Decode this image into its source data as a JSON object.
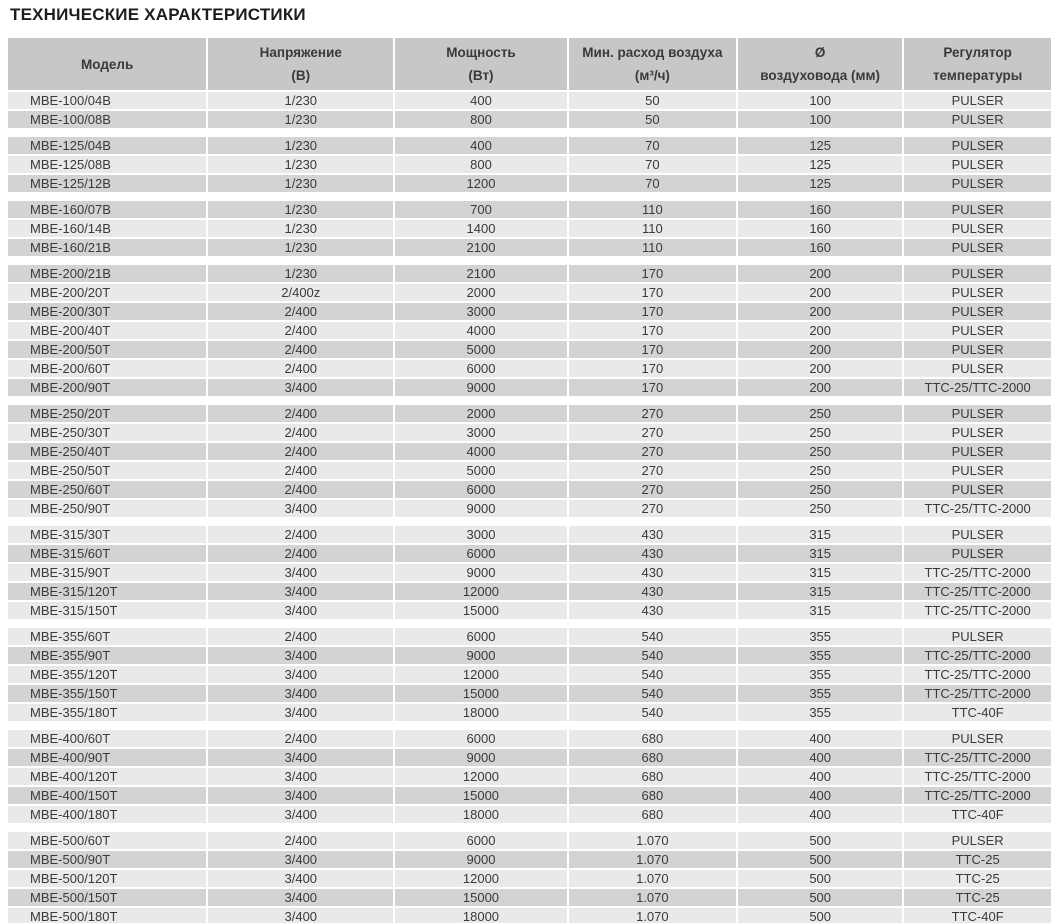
{
  "title": "ТЕХНИЧЕСКИЕ ХАРАКТЕРИСТИКИ",
  "colors": {
    "header_bg": "#c7c7c7",
    "row_light": "#e9e9e9",
    "row_dark": "#d3d3d3",
    "text": "#3a3a3a",
    "title_text": "#1d1d1b"
  },
  "table": {
    "columns": [
      {
        "label": "Модель",
        "sub": ""
      },
      {
        "label": "Напряжение",
        "sub": "(В)"
      },
      {
        "label": "Мощность",
        "sub": "(Вт)"
      },
      {
        "label": "Мин. расход воздуха",
        "sub": "(м³/ч)"
      },
      {
        "label": "Ø",
        "sub": "воздуховода (мм)"
      },
      {
        "label": "Регулятор",
        "sub": "температуры"
      }
    ],
    "groups": [
      {
        "name": "MBE-100",
        "rows": [
          [
            "MBE-100/04B",
            "1/230",
            "400",
            "50",
            "100",
            "PULSER"
          ],
          [
            "MBE-100/08B",
            "1/230",
            "800",
            "50",
            "100",
            "PULSER"
          ]
        ]
      },
      {
        "name": "MBE-125",
        "rows": [
          [
            "MBE-125/04B",
            "1/230",
            "400",
            "70",
            "125",
            "PULSER"
          ],
          [
            "MBE-125/08B",
            "1/230",
            "800",
            "70",
            "125",
            "PULSER"
          ],
          [
            "MBE-125/12B",
            "1/230",
            "1200",
            "70",
            "125",
            "PULSER"
          ]
        ]
      },
      {
        "name": "MBE-160",
        "rows": [
          [
            "MBE-160/07B",
            "1/230",
            "700",
            "110",
            "160",
            "PULSER"
          ],
          [
            "MBE-160/14B",
            "1/230",
            "1400",
            "110",
            "160",
            "PULSER"
          ],
          [
            "MBE-160/21B",
            "1/230",
            "2100",
            "110",
            "160",
            "PULSER"
          ]
        ]
      },
      {
        "name": "MBE-200",
        "rows": [
          [
            "MBE-200/21B",
            "1/230",
            "2100",
            "170",
            "200",
            "PULSER"
          ],
          [
            "MBE-200/20T",
            "2/400z",
            "2000",
            "170",
            "200",
            "PULSER"
          ],
          [
            "MBE-200/30T",
            "2/400",
            "3000",
            "170",
            "200",
            "PULSER"
          ],
          [
            "MBE-200/40T",
            "2/400",
            "4000",
            "170",
            "200",
            "PULSER"
          ],
          [
            "MBE-200/50T",
            "2/400",
            "5000",
            "170",
            "200",
            "PULSER"
          ],
          [
            "MBE-200/60T",
            "2/400",
            "6000",
            "170",
            "200",
            "PULSER"
          ],
          [
            "MBE-200/90T",
            "3/400",
            "9000",
            "170",
            "200",
            "TTC-25/TTC-2000"
          ]
        ]
      },
      {
        "name": "MBE-250",
        "rows": [
          [
            "MBE-250/20T",
            "2/400",
            "2000",
            "270",
            "250",
            "PULSER"
          ],
          [
            "MBE-250/30T",
            "2/400",
            "3000",
            "270",
            "250",
            "PULSER"
          ],
          [
            "MBE-250/40T",
            "2/400",
            "4000",
            "270",
            "250",
            "PULSER"
          ],
          [
            "MBE-250/50T",
            "2/400",
            "5000",
            "270",
            "250",
            "PULSER"
          ],
          [
            "MBE-250/60T",
            "2/400",
            "6000",
            "270",
            "250",
            "PULSER"
          ],
          [
            "MBE-250/90T",
            "3/400",
            "9000",
            "270",
            "250",
            "TTC-25/TTC-2000"
          ]
        ]
      },
      {
        "name": "MBE-315",
        "rows": [
          [
            "MBE-315/30T",
            "2/400",
            "3000",
            "430",
            "315",
            "PULSER"
          ],
          [
            "MBE-315/60T",
            "2/400",
            "6000",
            "430",
            "315",
            "PULSER"
          ],
          [
            "MBE-315/90T",
            "3/400",
            "9000",
            "430",
            "315",
            "TTC-25/TTC-2000"
          ],
          [
            "MBE-315/120T",
            "3/400",
            "12000",
            "430",
            "315",
            "TTC-25/TTC-2000"
          ],
          [
            "MBE-315/150T",
            "3/400",
            "15000",
            "430",
            "315",
            "TTC-25/TTC-2000"
          ]
        ]
      },
      {
        "name": "MBE-355",
        "rows": [
          [
            "MBE-355/60T",
            "2/400",
            "6000",
            "540",
            "355",
            "PULSER"
          ],
          [
            "MBE-355/90T",
            "3/400",
            "9000",
            "540",
            "355",
            "TTC-25/TTC-2000"
          ],
          [
            "MBE-355/120T",
            "3/400",
            "12000",
            "540",
            "355",
            "TTC-25/TTC-2000"
          ],
          [
            "MBE-355/150T",
            "3/400",
            "15000",
            "540",
            "355",
            "TTC-25/TTC-2000"
          ],
          [
            "MBE-355/180T",
            "3/400",
            "18000",
            "540",
            "355",
            "TTC-40F"
          ]
        ]
      },
      {
        "name": "MBE-400",
        "rows": [
          [
            "MBE-400/60T",
            "2/400",
            "6000",
            "680",
            "400",
            "PULSER"
          ],
          [
            "MBE-400/90T",
            "3/400",
            "9000",
            "680",
            "400",
            "TTC-25/TTC-2000"
          ],
          [
            "MBE-400/120T",
            "3/400",
            "12000",
            "680",
            "400",
            "TTC-25/TTC-2000"
          ],
          [
            "MBE-400/150T",
            "3/400",
            "15000",
            "680",
            "400",
            "TTC-25/TTC-2000"
          ],
          [
            "MBE-400/180T",
            "3/400",
            "18000",
            "680",
            "400",
            "TTC-40F"
          ]
        ]
      },
      {
        "name": "MBE-500",
        "rows": [
          [
            "MBE-500/60T",
            "2/400",
            "6000",
            "1.070",
            "500",
            "PULSER"
          ],
          [
            "MBE-500/90T",
            "3/400",
            "9000",
            "1.070",
            "500",
            "TTC-25"
          ],
          [
            "MBE-500/120T",
            "3/400",
            "12000",
            "1.070",
            "500",
            "TTC-25"
          ],
          [
            "MBE-500/150T",
            "3/400",
            "15000",
            "1.070",
            "500",
            "TTC-25"
          ],
          [
            "MBE-500/180T",
            "3/400",
            "18000",
            "1.070",
            "500",
            "TTC-40F"
          ]
        ]
      }
    ]
  }
}
